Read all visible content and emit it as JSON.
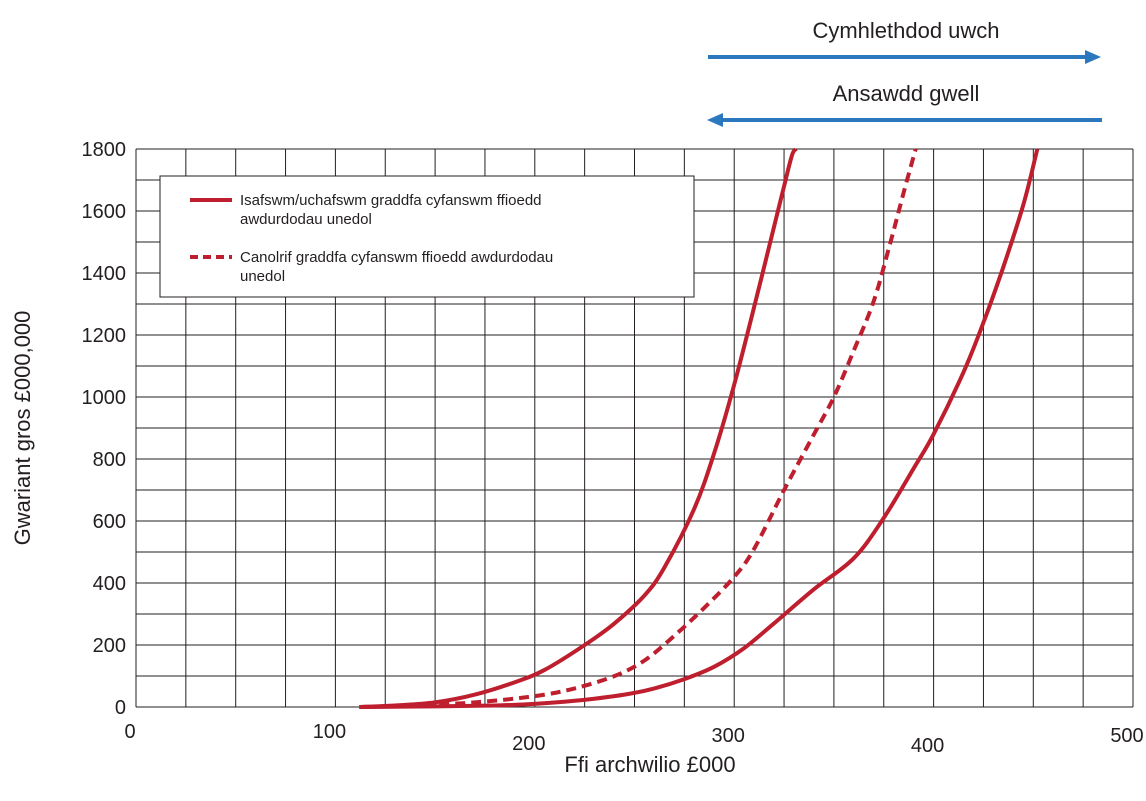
{
  "chart_data": {
    "type": "line",
    "xlabel": "Ffi archwilio £000",
    "ylabel": "Gwariant gros £000,000",
    "xlim": [
      0,
      500
    ],
    "ylim": [
      0,
      1800
    ],
    "x_ticks": [
      "0",
      "100",
      "200",
      "300",
      "400",
      "500"
    ],
    "y_ticks": [
      "0",
      "200",
      "400",
      "600",
      "800",
      "1000",
      "1200",
      "1400",
      "1600",
      "1800"
    ],
    "grid": true,
    "legend_position": "top-left",
    "legend": [
      {
        "style": "solid",
        "lines": [
          "Isafswm/uchafswm graddfa cyfanswm ffioedd",
          "awdurdodau unedol"
        ]
      },
      {
        "style": "dashed",
        "lines": [
          "Canolrif graddfa cyfanswm ffioedd awdurdodau",
          "unedol"
        ]
      }
    ],
    "annotations": [
      {
        "text": "Cymhlethdod uwch",
        "direction": "right",
        "x_from": 290,
        "x_to": 487
      },
      {
        "text": "Ansawdd gwell",
        "direction": "left",
        "x_from": 487,
        "x_to": 290
      }
    ],
    "series": [
      {
        "style": "solid",
        "color": "#be1e2d",
        "x": [
          112,
          130,
          150,
          170,
          190,
          205,
          225,
          240,
          255,
          265,
          280,
          290,
          300,
          310,
          320,
          325,
          329,
          331
        ],
        "y": [
          0,
          5,
          15,
          40,
          80,
          120,
          200,
          270,
          360,
          450,
          640,
          820,
          1040,
          1290,
          1550,
          1680,
          1780,
          1800
        ]
      },
      {
        "style": "solid",
        "color": "#be1e2d",
        "x": [
          112,
          150,
          180,
          200,
          220,
          245,
          260,
          275,
          290,
          305,
          320,
          340,
          360,
          375,
          390,
          400,
          415,
          425,
          435,
          445,
          452
        ],
        "y": [
          0,
          2,
          5,
          10,
          20,
          40,
          60,
          90,
          130,
          190,
          270,
          380,
          480,
          610,
          770,
          880,
          1080,
          1240,
          1420,
          1620,
          1800
        ]
      },
      {
        "style": "dashed",
        "color": "#be1e2d",
        "x": [
          112,
          140,
          170,
          200,
          220,
          240,
          255,
          270,
          285,
          300,
          310,
          325,
          340,
          350,
          360,
          370,
          378,
          385,
          391
        ],
        "y": [
          0,
          5,
          15,
          35,
          60,
          100,
          150,
          230,
          320,
          420,
          510,
          700,
          880,
          1000,
          1150,
          1310,
          1490,
          1660,
          1800
        ]
      }
    ]
  }
}
